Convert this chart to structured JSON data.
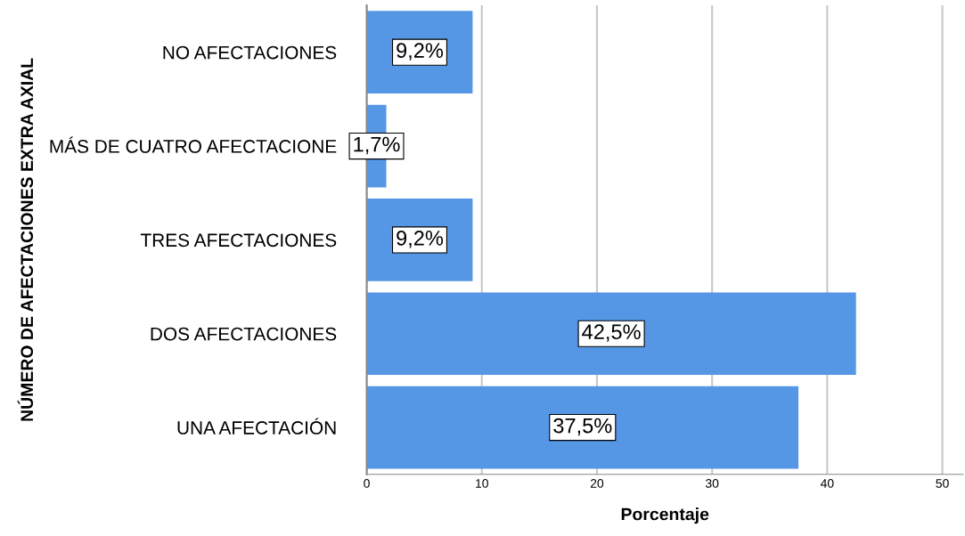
{
  "chart_data": {
    "type": "bar",
    "orientation": "horizontal",
    "categories": [
      "NO AFECTACIONES",
      "MÁS DE CUATRO AFECTACIONE",
      "TRES AFECTACIONES",
      "DOS AFECTACIONES",
      "UNA AFECTACIÓN"
    ],
    "values": [
      9.2,
      1.7,
      9.2,
      42.5,
      37.5
    ],
    "value_labels": [
      "9,2%",
      "1,7%",
      "9,2%",
      "42,5%",
      "37,5%"
    ],
    "color": "#5596e5",
    "xlabel": "Porcentaje",
    "ylabel": "NÚMERO DE AFECTACIONES EXTRA AXIAL",
    "xlim": [
      0,
      51.8
    ],
    "xticks": [
      0,
      10,
      20,
      30,
      40,
      50
    ],
    "grid": "x"
  }
}
